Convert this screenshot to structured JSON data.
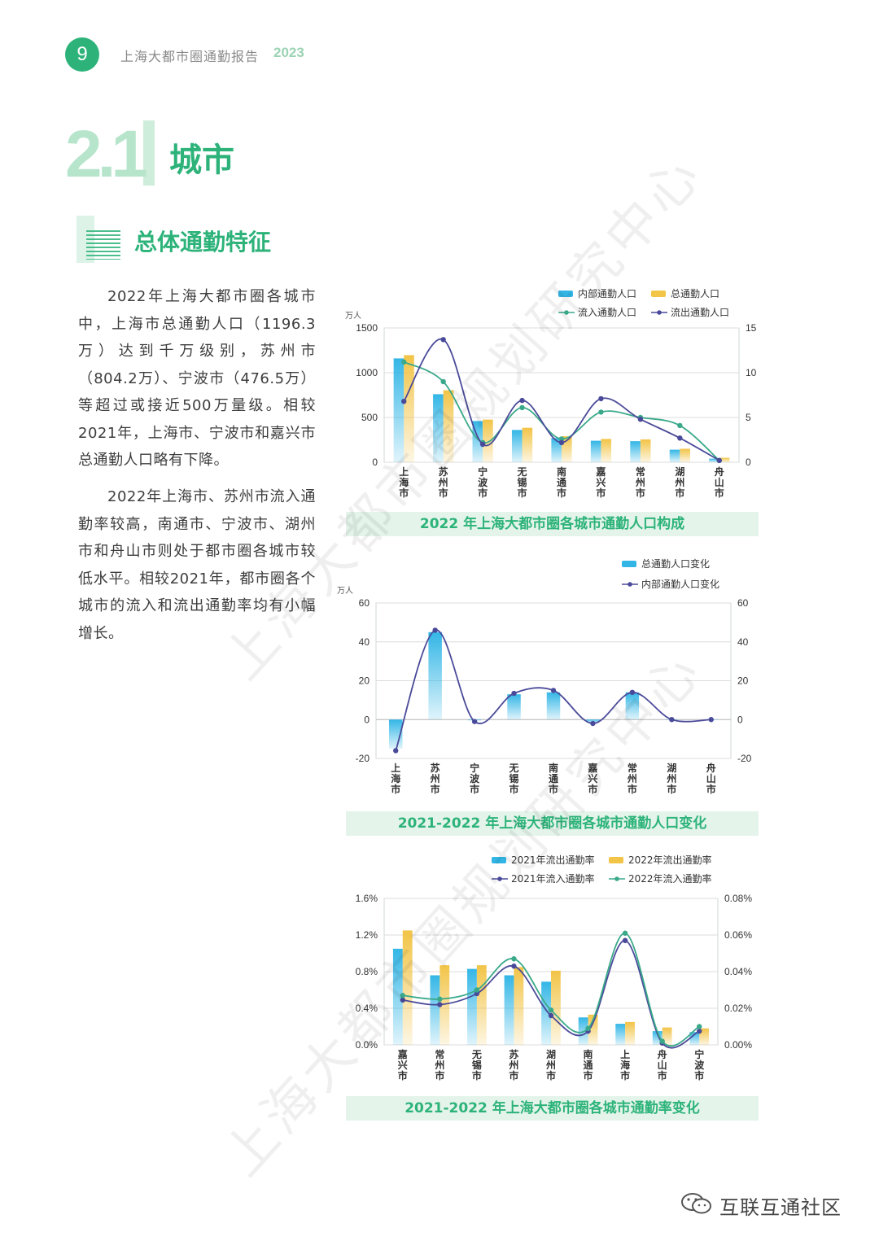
{
  "header": {
    "page_number": "9",
    "title": "上海大都市圈通勤报告",
    "year": "2023"
  },
  "section": {
    "number": "2.1",
    "title": "城市"
  },
  "subsection": {
    "title": "总体通勤特征"
  },
  "paragraphs": [
    "2022年上海大都市圈各城市中，上海市总通勤人口（1196.3万）达到千万级别，苏州市（804.2万）、宁波市（476.5万）等超过或接近500万量级。相较2021年，上海市、宁波市和嘉兴市总通勤人口略有下降。",
    "2022年上海市、苏州市流入通勤率较高，南通市、宁波市、湖州市和舟山市则处于都市圈各城市较低水平。相较2021年，都市圈各个城市的流入和流出通勤率均有小幅增长。"
  ],
  "watermark": "上海大都市圈规划研究中心",
  "footer": {
    "brand": "互联互通社区",
    "icon": "wechat-icon"
  },
  "colors": {
    "accent": "#2db37a",
    "blue": "#33b6e6",
    "yellow": "#f2c447",
    "line_green": "#3aa98a",
    "line_purple": "#4a4a9a"
  },
  "chart_data": [
    {
      "type": "bar",
      "caption": "2022 年上海大都市圈各城市通勤人口构成",
      "unit_left": "万人",
      "categories": [
        "上海市",
        "苏州市",
        "宁波市",
        "无锡市",
        "南通市",
        "嘉兴市",
        "常州市",
        "湖州市",
        "舟山市"
      ],
      "ylim_left": [
        0,
        1500
      ],
      "yticks_left": [
        "0",
        "500",
        "1000",
        "1500"
      ],
      "ylim_right": [
        0,
        15
      ],
      "yticks_right": [
        "0",
        "5",
        "10",
        "15"
      ],
      "series": [
        {
          "name": "内部通勤人口",
          "kind": "bar",
          "axis": "left",
          "color": "#33b6e6",
          "values": [
            1160,
            760,
            460,
            360,
            270,
            240,
            235,
            140,
            40
          ]
        },
        {
          "name": "总通勤人口",
          "kind": "bar",
          "axis": "left",
          "color": "#f2c447",
          "values": [
            1196.3,
            804.2,
            476.5,
            385,
            290,
            260,
            255,
            150,
            50
          ]
        },
        {
          "name": "流入通勤人口",
          "kind": "line",
          "axis": "right",
          "color": "#3aa98a",
          "values": [
            11.2,
            9.0,
            2.2,
            6.1,
            2.6,
            5.6,
            5.0,
            4.1,
            0.2
          ]
        },
        {
          "name": "流出通勤人口",
          "kind": "line",
          "axis": "right",
          "color": "#4a4a9a",
          "values": [
            6.8,
            13.7,
            2.0,
            6.9,
            2.2,
            7.1,
            4.8,
            2.7,
            0.2
          ]
        }
      ],
      "legend": "top-right",
      "grid": true
    },
    {
      "type": "bar",
      "caption": "2021-2022 年上海大都市圈各城市通勤人口变化",
      "unit_left": "万人",
      "categories": [
        "上海市",
        "苏州市",
        "宁波市",
        "无锡市",
        "南通市",
        "嘉兴市",
        "常州市",
        "湖州市",
        "舟山市"
      ],
      "ylim_left": [
        -20,
        60
      ],
      "yticks_left": [
        "-20",
        "0",
        "20",
        "40",
        "60"
      ],
      "ylim_right": [
        -20,
        60
      ],
      "yticks_right": [
        "-20",
        "0",
        "20",
        "40",
        "60"
      ],
      "series": [
        {
          "name": "总通勤人口变化",
          "kind": "bar",
          "axis": "left",
          "color": "#33b6e6",
          "values": [
            -15,
            45,
            -0.5,
            13,
            14,
            -1.5,
            14,
            0,
            0
          ]
        },
        {
          "name": "内部通勤人口变化",
          "kind": "line",
          "axis": "right",
          "color": "#4a4a9a",
          "values": [
            -16,
            46,
            -1,
            13.5,
            15,
            -2,
            14,
            0,
            0
          ]
        }
      ],
      "legend": "top-right",
      "grid": true
    },
    {
      "type": "bar",
      "caption": "2021-2022 年上海大都市圈各城市通勤率变化",
      "categories": [
        "嘉兴市",
        "常州市",
        "无锡市",
        "苏州市",
        "湖州市",
        "南通市",
        "上海市",
        "舟山市",
        "宁波市"
      ],
      "ylim_left": [
        0,
        1.6
      ],
      "yticks_left": [
        "0.0%",
        "0.4%",
        "0.8%",
        "1.2%",
        "1.6%"
      ],
      "ylim_right": [
        0,
        0.08
      ],
      "yticks_right": [
        "0.00%",
        "0.02%",
        "0.04%",
        "0.06%",
        "0.08%"
      ],
      "series": [
        {
          "name": "2021年流出通勤率",
          "kind": "bar",
          "axis": "left",
          "color": "#33b6e6",
          "values": [
            1.05,
            0.76,
            0.83,
            0.76,
            0.69,
            0.3,
            0.23,
            0.15,
            0.14
          ]
        },
        {
          "name": "2022年流出通勤率",
          "kind": "bar",
          "axis": "left",
          "color": "#f2c447",
          "values": [
            1.25,
            0.87,
            0.87,
            0.85,
            0.81,
            0.33,
            0.25,
            0.19,
            0.18
          ]
        },
        {
          "name": "2021年流入通勤率",
          "kind": "line",
          "axis": "right",
          "color": "#4a4a9a",
          "values": [
            0.0245,
            0.022,
            0.028,
            0.043,
            0.016,
            0.0075,
            0.057,
            0.001,
            0.0075
          ]
        },
        {
          "name": "2022年流入通勤率",
          "kind": "line",
          "axis": "right",
          "color": "#3aa98a",
          "values": [
            0.027,
            0.025,
            0.03,
            0.047,
            0.019,
            0.009,
            0.061,
            0.002,
            0.01
          ]
        }
      ],
      "legend": "top-right",
      "grid": true
    }
  ]
}
